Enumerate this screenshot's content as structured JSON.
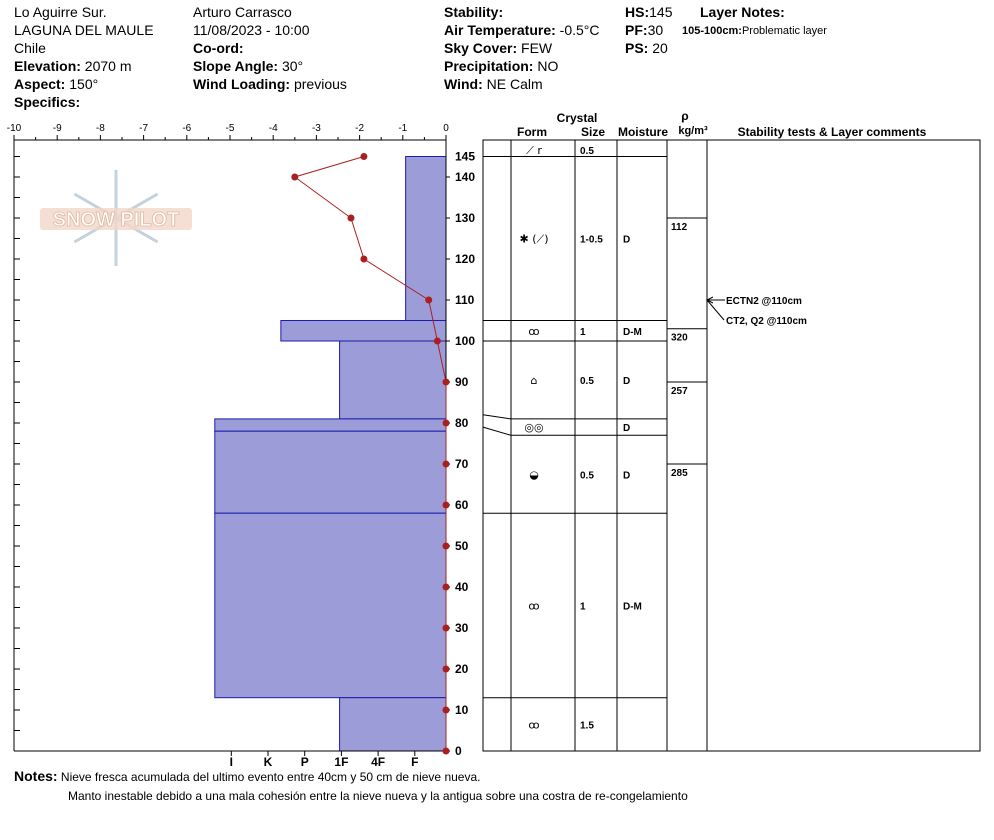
{
  "header": {
    "location": "Lo Aguirre Sur.",
    "range": "LAGUNA DEL MAULE",
    "country": "Chile",
    "elevation_label": "Elevation:",
    "elevation": "2070 m",
    "aspect_label": "Aspect:",
    "aspect": "150°",
    "specifics_label": "Specifics:",
    "observer": "Arturo Carrasco",
    "datetime": "11/08/2023 - 10:00",
    "coord_label": "Co-ord:",
    "slope_label": "Slope Angle:",
    "slope": "30°",
    "wind_loading_label": "Wind Loading:",
    "wind_loading": "previous",
    "stability_label": "Stability:",
    "air_temp_label": "Air Temperature:",
    "air_temp": "-0.5°C",
    "sky_label": "Sky Cover:",
    "sky": "FEW",
    "precip_label": "Precipitation:",
    "precip": "NO",
    "wind_label": "Wind:",
    "wind": "NE Calm",
    "hs_label": "HS:",
    "hs": "145",
    "pf_label": "PF:",
    "pf": "30",
    "ps_label": "PS:",
    "ps": "20",
    "layer_notes_label": "Layer Notes:",
    "layer_note_range": "105-100cm:",
    "layer_note_text": "Problematic layer"
  },
  "watermark": "SNOW PILOT",
  "notes": {
    "label": "Notes:",
    "line1": "Nieve fresca acumulada del ultimo evento entre 40cm  y 50 cm de nieve nueva.",
    "line2": "Manto inestable debido a una mala cohesión entre la nieve nueva y la antigua sobre una costra de re-congelamiento"
  },
  "colors": {
    "hardness_fill": "#9c9cd8",
    "temp_line": "#aa2020",
    "temp_point": "#aa2020"
  },
  "chart_data": {
    "type": "snow_profile",
    "temperature_axis": {
      "ticks": [
        "-10",
        "-9",
        "-8",
        "-7",
        "-6",
        "-5",
        "-4",
        "-3",
        "-2",
        "-1",
        "0"
      ],
      "range": [
        -10,
        0
      ]
    },
    "hardness_axis": {
      "ticks": [
        "I",
        "K",
        "P",
        "1F",
        "4F",
        "F"
      ]
    },
    "height_axis": {
      "ticks": [
        "0",
        "10",
        "20",
        "30",
        "40",
        "50",
        "60",
        "70",
        "80",
        "90",
        "100",
        "110",
        "120",
        "130",
        "140",
        "145"
      ],
      "range": [
        0,
        145
      ]
    },
    "temperature_profile": [
      {
        "height": 145,
        "temp": -1.9
      },
      {
        "height": 140,
        "temp": -3.5
      },
      {
        "height": 130,
        "temp": -2.2
      },
      {
        "height": 120,
        "temp": -1.9
      },
      {
        "height": 110,
        "temp": -0.4
      },
      {
        "height": 100,
        "temp": -0.2
      },
      {
        "height": 90,
        "temp": 0
      },
      {
        "height": 80,
        "temp": 0
      },
      {
        "height": 70,
        "temp": 0
      },
      {
        "height": 60,
        "temp": 0
      },
      {
        "height": 50,
        "temp": 0
      },
      {
        "height": 40,
        "temp": 0
      },
      {
        "height": 30,
        "temp": 0
      },
      {
        "height": 20,
        "temp": 0
      },
      {
        "height": 10,
        "temp": 0
      },
      {
        "height": 0,
        "temp": 0
      }
    ],
    "hardness_layers": [
      {
        "top": 145,
        "bottom": 105,
        "hardness_from_right": 1.1
      },
      {
        "top": 105,
        "bottom": 100,
        "hardness_from_right": 4.5
      },
      {
        "top": 100,
        "bottom": 81,
        "hardness_from_right": 2.9
      },
      {
        "top": 81,
        "bottom": 78,
        "hardness_from_right": 6.3
      },
      {
        "top": 78,
        "bottom": 58,
        "hardness_from_right": 6.3
      },
      {
        "top": 58,
        "bottom": 13,
        "hardness_from_right": 6.3
      },
      {
        "top": 13,
        "bottom": 0,
        "hardness_from_right": 2.9
      }
    ],
    "column_headers": {
      "crystal": "Crystal",
      "form": "Form",
      "size": "Size",
      "moisture": "Moisture",
      "rho": "ρ",
      "density_unit": "kg/m³",
      "comments": "Stability tests & Layer comments"
    },
    "crystal_layers": [
      {
        "top": 145,
        "bottom": 145,
        "form": "⟋ r",
        "size": "0.5",
        "moisture": ""
      },
      {
        "top": 145,
        "bottom": 105,
        "form": "✱ (⟋)",
        "size": "1-0.5",
        "moisture": "D"
      },
      {
        "top": 105,
        "bottom": 100,
        "form": "ꝏ",
        "size": "1",
        "moisture": "D-M"
      },
      {
        "top": 100,
        "bottom": 81,
        "form": "⌂",
        "size": "0.5",
        "moisture": "D"
      },
      {
        "top": 81,
        "bottom": 77,
        "form": "◎◎",
        "size": "",
        "moisture": "D"
      },
      {
        "top": 77,
        "bottom": 58,
        "form": "◒",
        "size": "0.5",
        "moisture": "D"
      },
      {
        "top": 58,
        "bottom": 13,
        "form": "ꝏ",
        "size": "1",
        "moisture": "D-M"
      },
      {
        "top": 13,
        "bottom": 0,
        "form": "ꝏ",
        "size": "1.5",
        "moisture": ""
      }
    ],
    "densities": [
      {
        "top": 130,
        "value": "112"
      },
      {
        "top": 103,
        "value": "320"
      },
      {
        "top": 90,
        "value": "257"
      },
      {
        "top": 70,
        "value": "285"
      }
    ],
    "stability_tests": [
      {
        "height": 110,
        "text": "ECTN2 @110cm"
      },
      {
        "height": 110,
        "text": "CT2, Q2 @110cm"
      }
    ]
  }
}
